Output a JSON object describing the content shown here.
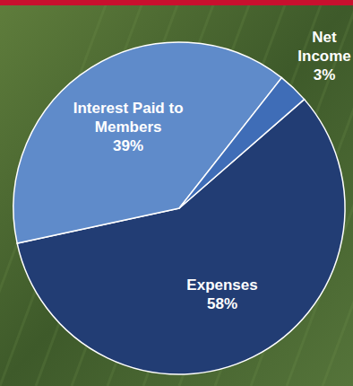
{
  "chart_data": {
    "type": "pie",
    "categories": [
      "Expenses",
      "Interest Paid to Members",
      "Net Income"
    ],
    "values": [
      58,
      39,
      3
    ],
    "value_labels": [
      "58%",
      "39%",
      "3%"
    ],
    "colors": [
      "#223d74",
      "#5f8bca",
      "#3f6db7"
    ],
    "data_labels": true
  }
}
